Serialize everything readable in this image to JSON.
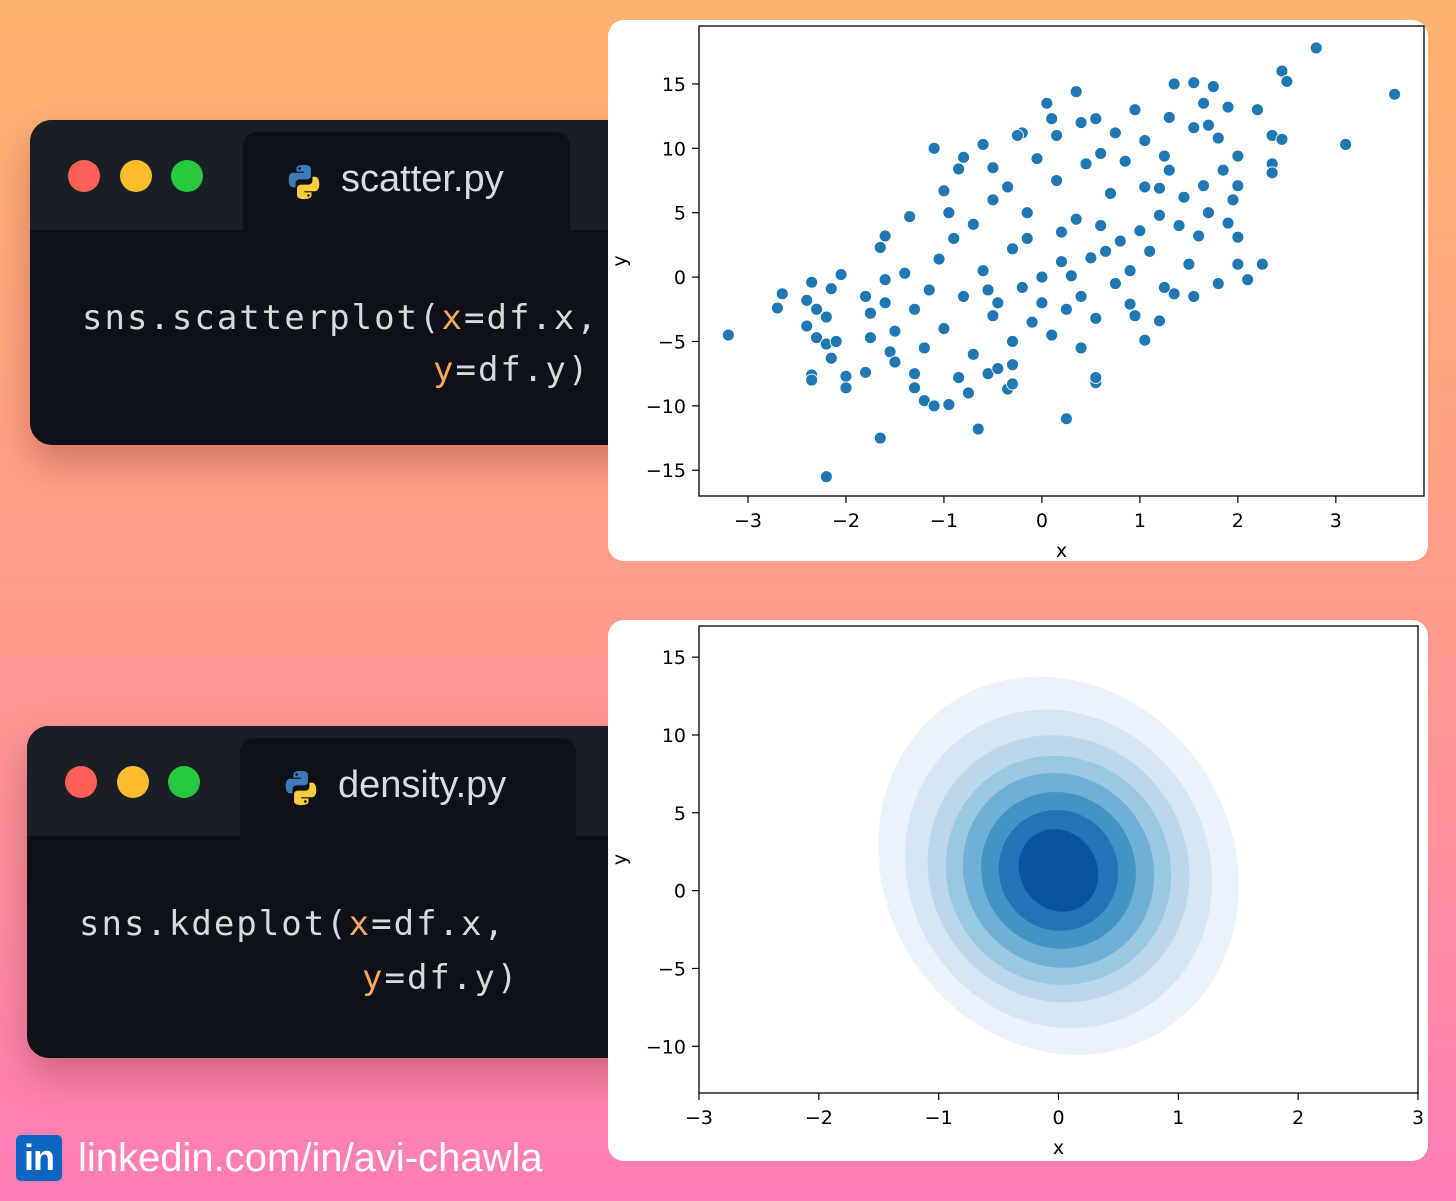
{
  "editors": [
    {
      "tab_label": "scatter.py",
      "code_line1": [
        "sns.scatterplot(",
        "x",
        "=df.x,"
      ],
      "code_line2": [
        "y",
        "=df.y)"
      ]
    },
    {
      "tab_label": "density.py",
      "code_line1": [
        "sns.kdeplot(",
        "x",
        "=df.x,"
      ],
      "code_line2": [
        "y",
        "=df.y)"
      ]
    }
  ],
  "colors": {
    "dot_red": "#ff5f56",
    "dot_yellow": "#ffbd2e",
    "dot_green": "#27c93f",
    "keyword": "#f2a95e",
    "scatter_point": "#1f77b4"
  },
  "linkedin": {
    "text": "linkedin.com/in/avi-chawla",
    "logo_text": "in"
  },
  "chart_data": [
    {
      "type": "scatter",
      "title": "",
      "xlabel": "x",
      "ylabel": "y",
      "xlim": [
        -3.5,
        3.9
      ],
      "ylim": [
        -17,
        19.5
      ],
      "xticks": [
        -3,
        -2,
        -1,
        0,
        1,
        2,
        3
      ],
      "yticks": [
        -15,
        -10,
        -5,
        0,
        5,
        10,
        15
      ],
      "marker_color": "#1f77b4",
      "series": [
        {
          "points": [
            [
              -3.2,
              -4.5
            ],
            [
              -2.65,
              -1.3
            ],
            [
              -2.7,
              -2.4
            ],
            [
              -2.35,
              -0.4
            ],
            [
              -2.4,
              -1.8
            ],
            [
              -2.3,
              -2.5
            ],
            [
              -2.2,
              -3.1
            ],
            [
              -2.15,
              -0.9
            ],
            [
              -2.4,
              -3.8
            ],
            [
              -2.3,
              -4.7
            ],
            [
              -2.2,
              -5.2
            ],
            [
              -2.15,
              -6.3
            ],
            [
              -2.35,
              -7.6
            ],
            [
              -2.35,
              -8.0
            ],
            [
              -2.0,
              -7.7
            ],
            [
              -2.0,
              -8.6
            ],
            [
              -2.05,
              0.2
            ],
            [
              -1.8,
              -1.5
            ],
            [
              -2.1,
              -5.0
            ],
            [
              -1.75,
              -2.8
            ],
            [
              -1.75,
              -4.7
            ],
            [
              -1.8,
              -7.4
            ],
            [
              -1.65,
              -12.5
            ],
            [
              -2.2,
              -15.5
            ],
            [
              -1.6,
              3.2
            ],
            [
              -1.65,
              2.3
            ],
            [
              -1.6,
              -0.2
            ],
            [
              -1.55,
              -5.8
            ],
            [
              -1.5,
              -6.6
            ],
            [
              -1.3,
              -7.5
            ],
            [
              -1.3,
              -8.6
            ],
            [
              -1.2,
              -9.6
            ],
            [
              -1.1,
              -10.0
            ],
            [
              -0.95,
              -9.9
            ],
            [
              -0.75,
              -9.0
            ],
            [
              -0.65,
              -11.8
            ],
            [
              -0.55,
              -7.5
            ],
            [
              -0.45,
              -7.1
            ],
            [
              -0.35,
              -8.7
            ],
            [
              -0.3,
              -8.3
            ],
            [
              -1.1,
              10.0
            ],
            [
              -1.0,
              6.7
            ],
            [
              -0.85,
              8.4
            ],
            [
              -0.8,
              9.3
            ],
            [
              -0.6,
              10.3
            ],
            [
              -0.5,
              8.5
            ],
            [
              -0.2,
              11.2
            ],
            [
              0.1,
              12.3
            ],
            [
              0.15,
              11.0
            ],
            [
              0.35,
              14.4
            ],
            [
              0.05,
              13.5
            ],
            [
              0.4,
              12.0
            ],
            [
              0.25,
              -11.0
            ],
            [
              0.55,
              -8.2
            ],
            [
              0.55,
              -7.8
            ],
            [
              1.05,
              -4.9
            ],
            [
              1.2,
              -3.4
            ],
            [
              1.35,
              -1.3
            ],
            [
              1.55,
              -1.5
            ],
            [
              1.8,
              -0.5
            ],
            [
              2.0,
              1.0
            ],
            [
              2.25,
              1.0
            ],
            [
              2.0,
              3.1
            ],
            [
              2.1,
              -0.2
            ],
            [
              2.2,
              13.0
            ],
            [
              2.35,
              11.0
            ],
            [
              2.35,
              8.8
            ],
            [
              2.35,
              8.1
            ],
            [
              2.45,
              16.0
            ],
            [
              2.5,
              15.2
            ],
            [
              2.45,
              10.7
            ],
            [
              2.8,
              17.8
            ],
            [
              3.1,
              10.3
            ],
            [
              3.6,
              14.2
            ],
            [
              1.35,
              15.0
            ],
            [
              1.55,
              15.1
            ],
            [
              1.75,
              14.8
            ],
            [
              1.65,
              13.5
            ],
            [
              1.9,
              13.2
            ],
            [
              1.55,
              11.6
            ],
            [
              1.8,
              10.8
            ],
            [
              2.0,
              9.4
            ],
            [
              1.85,
              8.3
            ],
            [
              2.0,
              7.1
            ],
            [
              1.95,
              6.0
            ],
            [
              1.7,
              5.0
            ],
            [
              1.9,
              4.2
            ],
            [
              1.6,
              3.2
            ],
            [
              0.95,
              13.0
            ],
            [
              0.75,
              11.2
            ],
            [
              0.6,
              9.6
            ],
            [
              1.25,
              9.4
            ],
            [
              1.3,
              8.3
            ],
            [
              1.05,
              7.0
            ],
            [
              1.45,
              6.2
            ],
            [
              1.2,
              4.8
            ],
            [
              -0.3,
              -5.0
            ],
            [
              -0.5,
              -3.0
            ],
            [
              0.0,
              -2.0
            ],
            [
              0.3,
              0.1
            ],
            [
              0.5,
              1.5
            ],
            [
              0.8,
              2.8
            ],
            [
              -0.8,
              -1.5
            ],
            [
              0.2,
              3.5
            ],
            [
              -0.15,
              5.0
            ],
            [
              0.6,
              4.0
            ],
            [
              -1.3,
              -2.5
            ],
            [
              -1.0,
              -4.0
            ],
            [
              -0.6,
              0.5
            ],
            [
              0.0,
              0.0
            ],
            [
              0.4,
              -1.5
            ],
            [
              0.9,
              0.5
            ],
            [
              1.1,
              2.0
            ],
            [
              -0.3,
              2.2
            ],
            [
              -0.9,
              3.0
            ],
            [
              0.7,
              6.5
            ],
            [
              1.5,
              1.0
            ],
            [
              -1.4,
              0.3
            ],
            [
              -0.7,
              -6.0
            ],
            [
              0.1,
              -4.5
            ],
            [
              0.55,
              -3.2
            ],
            [
              -0.2,
              -0.8
            ],
            [
              0.15,
              7.5
            ],
            [
              0.45,
              8.8
            ],
            [
              -0.5,
              6.0
            ],
            [
              1.25,
              -0.8
            ],
            [
              -1.15,
              -1.0
            ],
            [
              -0.45,
              -2.0
            ],
            [
              0.25,
              -2.5
            ],
            [
              0.75,
              -0.5
            ],
            [
              1.0,
              3.6
            ],
            [
              -0.95,
              5.0
            ],
            [
              0.85,
              9.0
            ],
            [
              -0.05,
              9.2
            ],
            [
              -0.7,
              4.1
            ],
            [
              -1.5,
              -4.2
            ],
            [
              -0.3,
              -6.8
            ],
            [
              0.4,
              -5.5
            ],
            [
              0.9,
              -2.1
            ],
            [
              1.4,
              4.0
            ],
            [
              1.65,
              7.1
            ],
            [
              1.05,
              10.6
            ],
            [
              0.55,
              12.3
            ],
            [
              -0.35,
              7.0
            ],
            [
              -1.05,
              1.4
            ],
            [
              -1.2,
              -5.5
            ],
            [
              -0.15,
              3.0
            ],
            [
              0.2,
              1.2
            ],
            [
              0.65,
              2.0
            ],
            [
              -0.55,
              -1.0
            ],
            [
              -0.1,
              -3.5
            ],
            [
              0.35,
              4.5
            ],
            [
              1.2,
              6.9
            ],
            [
              -0.25,
              11.0
            ],
            [
              1.3,
              12.4
            ],
            [
              1.7,
              11.8
            ],
            [
              -1.35,
              4.7
            ],
            [
              -0.85,
              -7.8
            ],
            [
              -1.6,
              -2.0
            ],
            [
              0.95,
              -3.0
            ]
          ]
        }
      ]
    },
    {
      "type": "kde",
      "title": "",
      "xlabel": "x",
      "ylabel": "y",
      "xlim": [
        -3,
        3
      ],
      "ylim": [
        -13,
        17
      ],
      "xticks": [
        -3,
        -2,
        -1,
        0,
        1,
        2,
        3
      ],
      "yticks": [
        -10,
        -5,
        0,
        5,
        10,
        15
      ],
      "levels": [
        {
          "center": [
            0.0,
            1.6
          ],
          "rx": 2.5,
          "ry": 12.8,
          "angle": -33,
          "color": "#eaf2fb"
        },
        {
          "center": [
            0.0,
            1.4
          ],
          "rx": 2.15,
          "ry": 10.7,
          "angle": -33,
          "color": "#d6e5f4"
        },
        {
          "center": [
            0.0,
            1.4
          ],
          "rx": 1.85,
          "ry": 8.9,
          "angle": -34,
          "color": "#bcd7eb"
        },
        {
          "center": [
            0.0,
            1.3
          ],
          "rx": 1.6,
          "ry": 7.6,
          "angle": -34,
          "color": "#9ac8e0"
        },
        {
          "center": [
            0.0,
            1.3
          ],
          "rx": 1.35,
          "ry": 6.5,
          "angle": -35,
          "color": "#6fb0d7"
        },
        {
          "center": [
            0.0,
            1.3
          ],
          "rx": 1.1,
          "ry": 5.2,
          "angle": -35,
          "color": "#4393c6"
        },
        {
          "center": [
            0.0,
            1.3
          ],
          "rx": 0.85,
          "ry": 4.0,
          "angle": -35,
          "color": "#2373b6"
        },
        {
          "center": [
            0.0,
            1.3
          ],
          "rx": 0.55,
          "ry": 2.8,
          "angle": -35,
          "color": "#0a539e"
        }
      ]
    }
  ]
}
